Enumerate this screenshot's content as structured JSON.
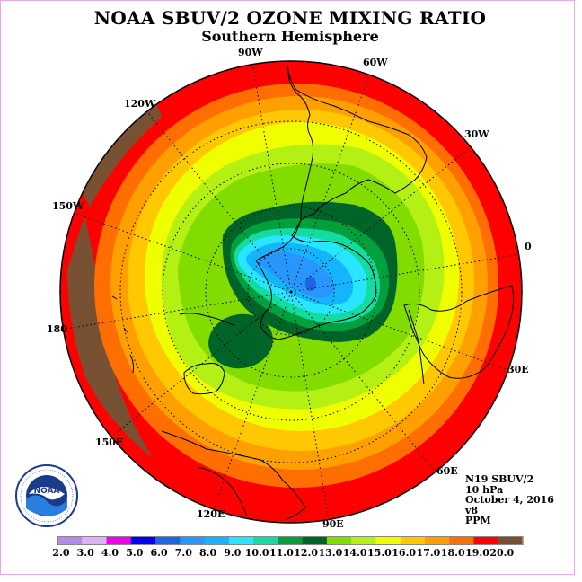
{
  "title": "NOAA SBUV/2 OZONE MIXING RATIO",
  "subtitle": "Southern Hemisphere",
  "longitude_labels": {
    "lon_90w": "90W",
    "lon_60w": "60W",
    "lon_30w": "30W",
    "lon_0": "0",
    "lon_30e": "30E",
    "lon_60e": "60E",
    "lon_90e": "90E",
    "lon_120e": "120E",
    "lon_150e": "150E",
    "lon_180": "180",
    "lon_150w": "150W",
    "lon_120w": "120W"
  },
  "info": {
    "satellite": "N19 SBUV/2",
    "level": "10 hPa",
    "date": "October 4, 2016",
    "version": "v8",
    "units": "PPM"
  },
  "logo": {
    "text": "NOAA",
    "ring_text": "NATIONAL OCEANIC AND ATMOSPHERIC ADMINISTRATION · U.S. DEPARTMENT OF COMMERCE"
  },
  "colorbar": {
    "labels": [
      "2.0",
      "3.0",
      "4.0",
      "5.0",
      "6.0",
      "7.0",
      "8.0",
      "9.0",
      "10.0",
      "11.0",
      "12.0",
      "13.0",
      "14.0",
      "15.0",
      "16.0",
      "17.0",
      "18.0",
      "19.0",
      "20.0"
    ],
    "colors": [
      "#b48ce8",
      "#dcb4f4",
      "#f000f0",
      "#0000f0",
      "#1e64e6",
      "#2896ff",
      "#14b4ff",
      "#28e6ff",
      "#14dca0",
      "#00a03c",
      "#006428",
      "#82dc00",
      "#b4f014",
      "#f0ff00",
      "#ffc800",
      "#ffa000",
      "#ff6e00",
      "#ff0000",
      "#785032"
    ]
  }
}
